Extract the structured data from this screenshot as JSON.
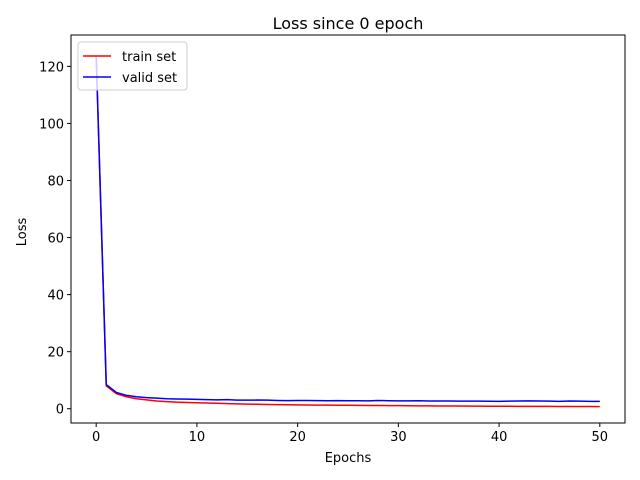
{
  "chart_data": {
    "type": "line",
    "title": "Loss since 0 epoch",
    "xlabel": "Epochs",
    "ylabel": "Loss",
    "xlim": [
      -2.5,
      52.5
    ],
    "ylim": [
      -5,
      131
    ],
    "xticks": [
      0,
      10,
      20,
      30,
      40,
      50
    ],
    "yticks": [
      0,
      20,
      40,
      60,
      80,
      100,
      120
    ],
    "grid": false,
    "legend_position": "top-left",
    "x": [
      0,
      1,
      2,
      3,
      4,
      5,
      6,
      7,
      8,
      9,
      10,
      11,
      12,
      13,
      14,
      15,
      16,
      17,
      18,
      19,
      20,
      21,
      22,
      23,
      24,
      25,
      26,
      27,
      28,
      29,
      30,
      31,
      32,
      33,
      34,
      35,
      36,
      37,
      38,
      39,
      40,
      41,
      42,
      43,
      44,
      45,
      46,
      47,
      48,
      49,
      50
    ],
    "series": [
      {
        "name": "train set",
        "color": "#ff0000",
        "values": [
          124,
          8.0,
          5.3,
          4.2,
          3.5,
          3.1,
          2.7,
          2.5,
          2.3,
          2.2,
          2.1,
          2.0,
          1.9,
          1.8,
          1.7,
          1.6,
          1.55,
          1.5,
          1.45,
          1.4,
          1.35,
          1.3,
          1.28,
          1.25,
          1.22,
          1.2,
          1.18,
          1.15,
          1.12,
          1.1,
          1.08,
          1.05,
          1.02,
          1.0,
          0.98,
          0.96,
          0.94,
          0.92,
          0.9,
          0.88,
          0.86,
          0.85,
          0.84,
          0.83,
          0.82,
          0.81,
          0.8,
          0.79,
          0.78,
          0.77,
          0.76
        ]
      },
      {
        "name": "valid set",
        "color": "#0000ff",
        "values": [
          124,
          8.5,
          5.7,
          4.7,
          4.2,
          3.9,
          3.7,
          3.5,
          3.4,
          3.35,
          3.3,
          3.2,
          3.1,
          3.2,
          3.0,
          3.0,
          3.05,
          3.0,
          2.9,
          2.85,
          2.9,
          2.9,
          2.85,
          2.8,
          2.85,
          2.8,
          2.8,
          2.75,
          2.9,
          2.8,
          2.75,
          2.75,
          2.8,
          2.7,
          2.7,
          2.7,
          2.68,
          2.65,
          2.65,
          2.62,
          2.6,
          2.65,
          2.7,
          2.75,
          2.7,
          2.65,
          2.6,
          2.7,
          2.65,
          2.6,
          2.6
        ]
      }
    ]
  }
}
